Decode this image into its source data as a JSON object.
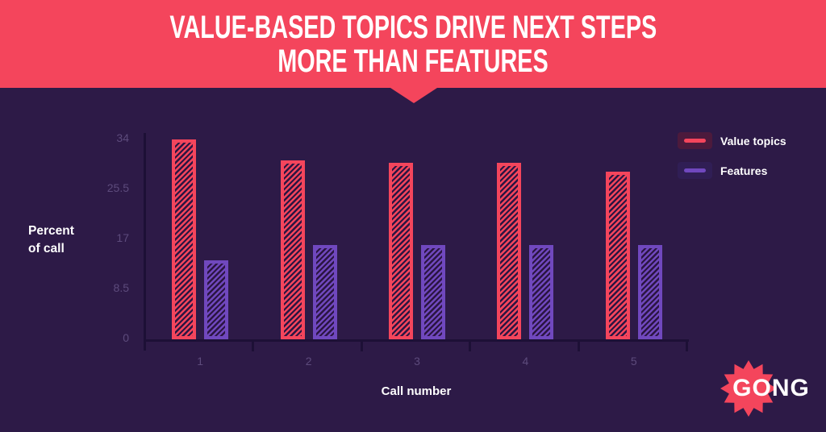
{
  "header": {
    "title_line1": "VALUE-BASED TOPICS DRIVE NEXT STEPS",
    "title_line2": "MORE THAN FEATURES"
  },
  "colors": {
    "background": "#2d1a47",
    "accent_red": "#f4455c",
    "accent_purple": "#7048be",
    "stripe_dark": "#2b1542",
    "axis_line": "#1d1036",
    "tick_text": "#5d4b7c",
    "legend_red_bg": "#4c1a3c",
    "legend_purple_bg": "#301e55",
    "text_white": "#ffffff"
  },
  "chart_data": {
    "type": "bar",
    "title": "Value-based topics drive next steps more than features",
    "categories": [
      "1",
      "2",
      "3",
      "4",
      "5"
    ],
    "series": [
      {
        "name": "Value topics",
        "color": "#f4455c",
        "values": [
          34,
          30.5,
          30,
          30,
          28.5
        ]
      },
      {
        "name": "Features",
        "color": "#7048be",
        "values": [
          13.5,
          16,
          16,
          16,
          16
        ]
      }
    ],
    "xlabel": "Call number",
    "ylabel": "Percent of call",
    "ylabel_lines": [
      "Percent",
      "of call"
    ],
    "yticks": [
      0,
      8.5,
      17,
      25.5,
      34
    ],
    "ylim": [
      0,
      34
    ],
    "grid": false,
    "legend_position": "top-right",
    "bar_style": "diagonal-hatch"
  },
  "legend": {
    "items": [
      {
        "label": "Value topics",
        "color": "#f4455c",
        "bg": "#4c1a3c"
      },
      {
        "label": "Features",
        "color": "#7048be",
        "bg": "#301e55"
      }
    ]
  },
  "logo": {
    "text": "GONG",
    "burst_color": "#f4455c"
  }
}
